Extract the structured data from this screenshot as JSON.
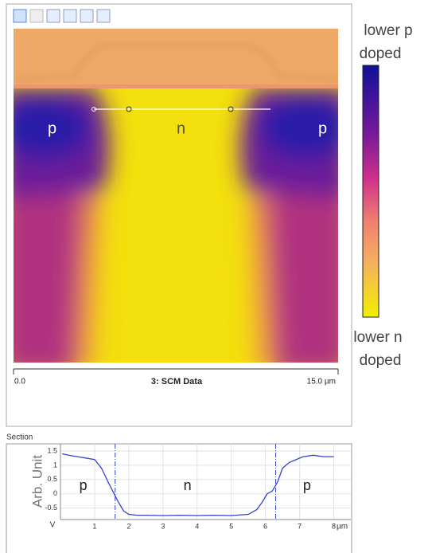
{
  "image_panel": {
    "labels": [
      "p",
      "n",
      "p"
    ],
    "scale_start": "0.0",
    "caption": "3: SCM Data",
    "scale_end": "15.0 µm"
  },
  "colorbar": {
    "top_lines": [
      "lower p",
      "doped"
    ],
    "bottom_lines": [
      "lower n",
      "doped"
    ]
  },
  "section_title": "Section",
  "chart_data": {
    "type": "line",
    "ylabel": "Arb. Unit",
    "xlabel": "µm",
    "y_corner_label": "V",
    "annotations": [
      "p",
      "n",
      "p"
    ],
    "x": [
      0.05,
      0.25,
      0.5,
      0.75,
      1.0,
      1.2,
      1.4,
      1.55,
      1.7,
      1.85,
      2.0,
      2.25,
      2.5,
      3.0,
      3.5,
      4.0,
      4.5,
      5.0,
      5.5,
      5.75,
      5.9,
      6.05,
      6.2,
      6.35,
      6.5,
      6.7,
      6.9,
      7.1,
      7.4,
      7.7,
      8.0
    ],
    "values": [
      1.4,
      1.35,
      1.3,
      1.25,
      1.2,
      0.9,
      0.4,
      0.05,
      -0.3,
      -0.6,
      -0.72,
      -0.75,
      -0.75,
      -0.76,
      -0.75,
      -0.76,
      -0.75,
      -0.76,
      -0.72,
      -0.55,
      -0.3,
      0.0,
      0.1,
      0.4,
      0.9,
      1.1,
      1.2,
      1.3,
      1.35,
      1.3,
      1.3
    ],
    "color": "#3344cc",
    "cursors": [
      1.6,
      6.3
    ],
    "xlim": [
      0,
      8.5
    ],
    "ylim": [
      -0.9,
      1.75
    ],
    "xticks": [
      1,
      2,
      3,
      4,
      5,
      6,
      7,
      8
    ],
    "yticks": [
      1.5,
      1,
      0.5,
      0,
      -0.5
    ],
    "grid": true
  }
}
